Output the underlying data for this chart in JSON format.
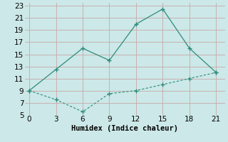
{
  "line1_x": [
    0,
    3,
    6,
    9,
    12,
    15,
    18,
    21
  ],
  "line1_y": [
    9,
    12.5,
    16,
    14,
    20.0,
    22.5,
    16,
    12
  ],
  "line2_x": [
    0,
    3,
    6,
    9,
    12,
    15,
    18,
    21
  ],
  "line2_y": [
    9,
    7.5,
    5.5,
    8.5,
    9.0,
    10.0,
    11.0,
    12
  ],
  "line_color": "#2e8b7a",
  "bg_color": "#cce8e8",
  "grid_major_color": "#b0d0d0",
  "grid_minor_color": "#d4a0a0",
  "xlabel": "Humidex (Indice chaleur)",
  "xlim": [
    -0.5,
    22
  ],
  "ylim": [
    5,
    23.5
  ],
  "xticks": [
    0,
    3,
    6,
    9,
    12,
    15,
    18,
    21
  ],
  "yticks": [
    5,
    7,
    9,
    11,
    13,
    15,
    17,
    19,
    21,
    23
  ],
  "font_size": 7.5
}
